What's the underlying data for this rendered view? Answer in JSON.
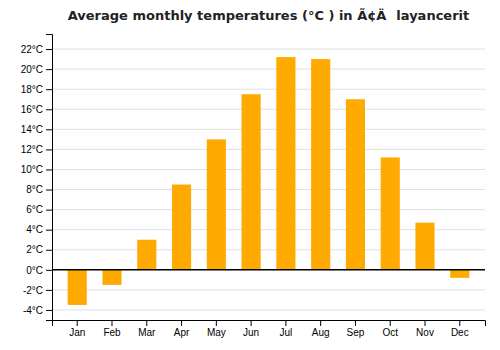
{
  "chart_data": {
    "type": "bar",
    "title": "Average monthly temperatures (°C ) in Ã¢Älayancerit",
    "categories": [
      "Jan",
      "Feb",
      "Mar",
      "Apr",
      "May",
      "Jun",
      "Jul",
      "Aug",
      "Sep",
      "Oct",
      "Nov",
      "Dec"
    ],
    "values": [
      -3.5,
      -1.5,
      3.0,
      8.5,
      13.0,
      17.5,
      21.2,
      21.0,
      17.0,
      11.2,
      4.7,
      -0.8
    ],
    "color": "#FFAA00",
    "ylim": [
      -5.0,
      23.5
    ],
    "yticks": [
      {
        "value": -4,
        "label": "-4°C"
      },
      {
        "value": -2,
        "label": "-2°C"
      },
      {
        "value": 0,
        "label": "0°C"
      },
      {
        "value": 2,
        "label": "2°C"
      },
      {
        "value": 4,
        "label": "4°C"
      },
      {
        "value": 6,
        "label": "6°C"
      },
      {
        "value": 8,
        "label": "8°C"
      },
      {
        "value": 10,
        "label": "10°C"
      },
      {
        "value": 12,
        "label": "12°C"
      },
      {
        "value": 14,
        "label": "14°C"
      },
      {
        "value": 16,
        "label": "16°C"
      },
      {
        "value": 18,
        "label": "18°C"
      },
      {
        "value": 20,
        "label": "20°C"
      },
      {
        "value": 22,
        "label": "22°C"
      }
    ],
    "grid": true
  }
}
